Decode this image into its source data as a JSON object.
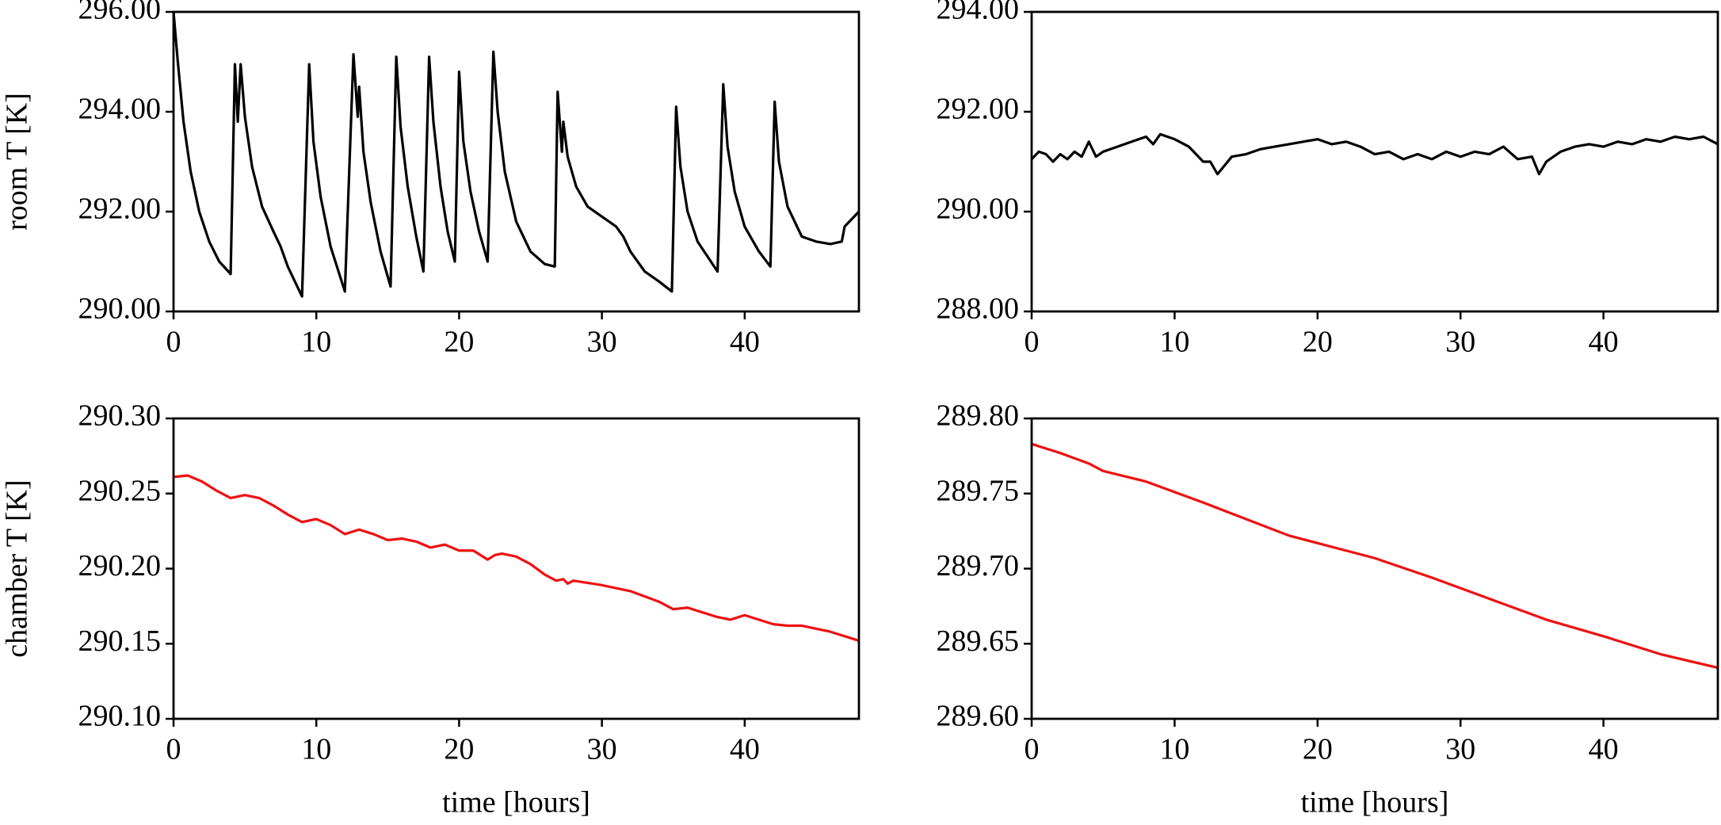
{
  "chart_data": [
    {
      "type": "line",
      "ylabel": "room T [K]",
      "color": "#000000",
      "xlim": [
        0,
        48
      ],
      "xticks": [
        0,
        10,
        20,
        30,
        40
      ],
      "ylim": [
        290,
        296
      ],
      "yticks": [
        {
          "value": 290,
          "label": "290.00"
        },
        {
          "value": 292,
          "label": "292.00"
        },
        {
          "value": 294,
          "label": "294.00"
        },
        {
          "value": 296,
          "label": "296.00"
        }
      ],
      "x": [
        0,
        0.3,
        0.7,
        1.2,
        1.8,
        2.5,
        3.2,
        4.0,
        4.3,
        4.5,
        4.7,
        5.0,
        5.5,
        6.2,
        7.0,
        7.5,
        8.0,
        9.0,
        9.5,
        9.8,
        10.3,
        11,
        12,
        12.6,
        12.9,
        13.0,
        13.3,
        13.8,
        14.5,
        15.2,
        15.6,
        15.9,
        16.4,
        17,
        17.5,
        17.9,
        18.2,
        18.7,
        19.2,
        19.7,
        20,
        20.3,
        20.8,
        21.4,
        22,
        22.4,
        22.7,
        23.2,
        24,
        25,
        26,
        26.7,
        26.9,
        27.2,
        27.3,
        27.6,
        28.2,
        29,
        30,
        31,
        31.5,
        32,
        33,
        34,
        34.9,
        35.2,
        35.5,
        36,
        36.7,
        38.1,
        38.5,
        38.8,
        39.3,
        40,
        41,
        41.8,
        42.1,
        42.4,
        43,
        44,
        45,
        46,
        46.8,
        47,
        48
      ],
      "values": [
        296,
        295,
        293.8,
        292.8,
        292,
        291.4,
        291,
        290.75,
        294.95,
        293.8,
        294.95,
        293.9,
        292.9,
        292.1,
        291.6,
        291.3,
        290.9,
        290.3,
        294.95,
        293.4,
        292.3,
        291.3,
        290.4,
        295.15,
        293.9,
        294.5,
        293.2,
        292.2,
        291.2,
        290.5,
        295.1,
        293.7,
        292.5,
        291.5,
        290.8,
        295.1,
        293.8,
        292.5,
        291.6,
        291,
        294.8,
        293.4,
        292.4,
        291.6,
        291,
        295.2,
        294,
        292.8,
        291.8,
        291.2,
        290.95,
        290.9,
        294.4,
        293.2,
        293.8,
        293.1,
        292.5,
        292.1,
        291.9,
        291.7,
        291.5,
        291.2,
        290.8,
        290.6,
        290.4,
        294.1,
        292.9,
        292,
        291.4,
        290.8,
        294.55,
        293.3,
        292.4,
        291.7,
        291.2,
        290.9,
        294.2,
        293,
        292.1,
        291.5,
        291.4,
        291.35,
        291.4,
        291.7,
        292
      ]
    },
    {
      "type": "line",
      "color": "#000000",
      "xlim": [
        0,
        48
      ],
      "xticks": [
        0,
        10,
        20,
        30,
        40
      ],
      "ylim": [
        288,
        294
      ],
      "yticks": [
        {
          "value": 288,
          "label": "288.00"
        },
        {
          "value": 290,
          "label": "290.00"
        },
        {
          "value": 292,
          "label": "292.00"
        },
        {
          "value": 294,
          "label": "294.00"
        }
      ],
      "x": [
        0,
        0.5,
        1,
        1.5,
        2,
        2.5,
        3,
        3.5,
        4,
        4.5,
        5,
        6,
        7,
        8,
        8.5,
        9,
        10,
        11,
        12,
        12.5,
        13,
        14,
        15,
        16,
        17,
        18,
        19,
        20,
        21,
        22,
        23,
        24,
        25,
        26,
        27,
        28,
        29,
        30,
        31,
        32,
        33,
        34,
        35,
        35.5,
        36,
        37,
        38,
        39,
        40,
        41,
        42,
        43,
        44,
        45,
        46,
        47,
        48
      ],
      "values": [
        291.05,
        291.2,
        291.15,
        291.0,
        291.15,
        291.05,
        291.2,
        291.1,
        291.4,
        291.1,
        291.2,
        291.3,
        291.4,
        291.5,
        291.35,
        291.55,
        291.45,
        291.3,
        291.0,
        291.0,
        290.75,
        291.1,
        291.15,
        291.25,
        291.3,
        291.35,
        291.4,
        291.45,
        291.35,
        291.4,
        291.3,
        291.15,
        291.2,
        291.05,
        291.15,
        291.05,
        291.2,
        291.1,
        291.2,
        291.15,
        291.3,
        291.05,
        291.1,
        290.75,
        291.0,
        291.2,
        291.3,
        291.35,
        291.3,
        291.4,
        291.35,
        291.45,
        291.4,
        291.5,
        291.45,
        291.5,
        291.35
      ]
    },
    {
      "type": "line",
      "ylabel": "chamber T [K]",
      "xlabel": "time [hours]",
      "color": "#ee1111",
      "xlim": [
        0,
        48
      ],
      "xticks": [
        0,
        10,
        20,
        30,
        40
      ],
      "ylim": [
        290.1,
        290.3
      ],
      "yticks": [
        {
          "value": 290.1,
          "label": "290.10"
        },
        290.15,
        {
          "value": 290.2,
          "label": "290.20"
        },
        290.25,
        {
          "value": 290.3,
          "label": "290.30"
        }
      ],
      "x": [
        0,
        1,
        2,
        3,
        4,
        5,
        6,
        7,
        8,
        9,
        10,
        11,
        12,
        13,
        14,
        15,
        16,
        17,
        18,
        19,
        20,
        21,
        22,
        22.5,
        23,
        24,
        25,
        26,
        26.8,
        27.3,
        27.6,
        28,
        30,
        32,
        34,
        35,
        36,
        38,
        39,
        40,
        42,
        43,
        44,
        46,
        48
      ],
      "values": [
        290.261,
        290.262,
        290.258,
        290.252,
        290.247,
        290.249,
        290.247,
        290.242,
        290.236,
        290.231,
        290.233,
        290.229,
        290.223,
        290.226,
        290.223,
        290.219,
        290.22,
        290.218,
        290.214,
        290.216,
        290.212,
        290.212,
        290.206,
        290.209,
        290.21,
        290.208,
        290.203,
        290.196,
        290.192,
        290.193,
        290.19,
        290.192,
        290.189,
        290.185,
        290.178,
        290.173,
        290.174,
        290.168,
        290.166,
        290.169,
        290.163,
        290.162,
        290.162,
        290.158,
        290.152
      ]
    },
    {
      "type": "line",
      "xlabel": "time [hours]",
      "color": "#ee1111",
      "xlim": [
        0,
        48
      ],
      "xticks": [
        0,
        10,
        20,
        30,
        40
      ],
      "ylim": [
        289.6,
        289.8
      ],
      "yticks": [
        {
          "value": 289.6,
          "label": "289.60"
        },
        289.65,
        {
          "value": 289.7,
          "label": "289.70"
        },
        289.75,
        {
          "value": 289.8,
          "label": "289.80"
        }
      ],
      "x": [
        0,
        2,
        4,
        5,
        8,
        10,
        12,
        15,
        18,
        20,
        24,
        28,
        32,
        36,
        40,
        44,
        48
      ],
      "values": [
        289.783,
        289.777,
        289.77,
        289.765,
        289.758,
        289.751,
        289.744,
        289.733,
        289.722,
        289.717,
        289.707,
        289.694,
        289.68,
        289.666,
        289.655,
        289.643,
        289.634
      ]
    }
  ]
}
